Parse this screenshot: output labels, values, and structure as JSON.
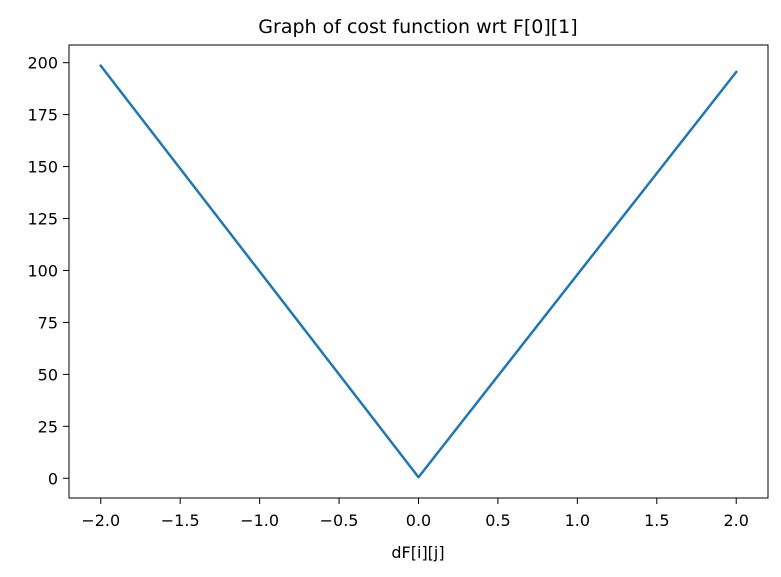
{
  "chart_data": {
    "type": "line",
    "title": "Graph of cost function wrt F[0][1]",
    "xlabel": "dF[i][j]",
    "ylabel": "",
    "xlim": [
      -2.2,
      2.2
    ],
    "ylim": [
      -9.5,
      208.5
    ],
    "x_ticks": [
      -2.0,
      -1.5,
      -1.0,
      -0.5,
      0.0,
      0.5,
      1.0,
      1.5,
      2.0
    ],
    "x_tick_labels": [
      "−2.0",
      "−1.5",
      "−1.0",
      "−0.5",
      "0.0",
      "0.5",
      "1.0",
      "1.5",
      "2.0"
    ],
    "y_ticks": [
      0,
      25,
      50,
      75,
      100,
      125,
      150,
      175,
      200
    ],
    "y_tick_labels": [
      "0",
      "25",
      "50",
      "75",
      "100",
      "125",
      "150",
      "175",
      "200"
    ],
    "grid": false,
    "legend": false,
    "series": [
      {
        "color": "#1f77b4",
        "x": [
          -2.0,
          0.0,
          2.0
        ],
        "y": [
          198.5,
          0.5,
          195.5
        ]
      }
    ]
  }
}
